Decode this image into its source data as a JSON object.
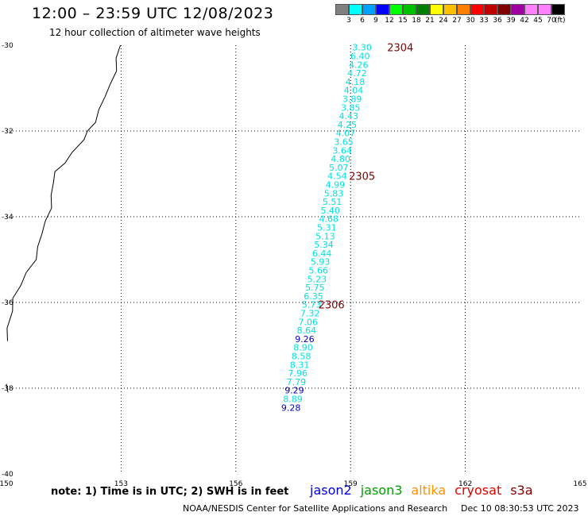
{
  "header": {
    "title": "12:00 – 23:59 UTC 12/08/2023",
    "subtitle": "12 hour collection of altimeter wave heights"
  },
  "colorbar": {
    "colors": [
      "#808080",
      "#00ffff",
      "#00a0ff",
      "#0000ff",
      "#00ff00",
      "#00c000",
      "#008000",
      "#ffff00",
      "#ffc000",
      "#ff8000",
      "#ff0000",
      "#c00000",
      "#800000",
      "#a000a0",
      "#ff80ff",
      "#ff80ff",
      "#000000"
    ],
    "labels": [
      "3",
      "6",
      "9",
      "12",
      "15",
      "18",
      "21",
      "24",
      "27",
      "30",
      "33",
      "36",
      "39",
      "42",
      "45",
      "70"
    ],
    "unit": "(ft)"
  },
  "map": {
    "lon_range": [
      150,
      165
    ],
    "lat_range": [
      -40,
      -30
    ],
    "lon_ticks": [
      "150",
      "153",
      "156",
      "159",
      "162",
      "165"
    ],
    "lat_ticks": [
      "-30",
      "-32",
      "-34",
      "-36",
      "-38",
      "-40"
    ],
    "grid": true,
    "coast_color": "#000000",
    "point_color_cyan": "#00e0e0",
    "point_color_blue": "#0000c0",
    "pass_color": "#800000",
    "wave_points": [
      {
        "lon": 159.3,
        "lat": -30.05,
        "value": "3.30",
        "color": "cyan"
      },
      {
        "lon": 159.25,
        "lat": -30.25,
        "value": "6.40",
        "color": "cyan"
      },
      {
        "lon": 159.21,
        "lat": -30.45,
        "value": "4.26",
        "color": "cyan"
      },
      {
        "lon": 159.17,
        "lat": -30.65,
        "value": "4.72",
        "color": "cyan"
      },
      {
        "lon": 159.12,
        "lat": -30.85,
        "value": "4.18",
        "color": "cyan"
      },
      {
        "lon": 159.08,
        "lat": -31.05,
        "value": "4.04",
        "color": "cyan"
      },
      {
        "lon": 159.04,
        "lat": -31.25,
        "value": "3.89",
        "color": "cyan"
      },
      {
        "lon": 159.0,
        "lat": -31.45,
        "value": "3.85",
        "color": "cyan"
      },
      {
        "lon": 158.95,
        "lat": -31.65,
        "value": "4.43",
        "color": "cyan"
      },
      {
        "lon": 158.91,
        "lat": -31.85,
        "value": "4.25",
        "color": "cyan"
      },
      {
        "lon": 158.87,
        "lat": -32.05,
        "value": "4.07",
        "color": "cyan"
      },
      {
        "lon": 158.82,
        "lat": -32.25,
        "value": "3.65",
        "color": "cyan"
      },
      {
        "lon": 158.78,
        "lat": -32.45,
        "value": "3.64",
        "color": "cyan"
      },
      {
        "lon": 158.74,
        "lat": -32.65,
        "value": "4.80",
        "color": "cyan"
      },
      {
        "lon": 158.69,
        "lat": -32.85,
        "value": "5.07",
        "color": "cyan"
      },
      {
        "lon": 158.65,
        "lat": -33.05,
        "value": "4.54",
        "color": "cyan"
      },
      {
        "lon": 158.6,
        "lat": -33.25,
        "value": "4.99",
        "color": "cyan"
      },
      {
        "lon": 158.56,
        "lat": -33.45,
        "value": "5.83",
        "color": "cyan"
      },
      {
        "lon": 158.52,
        "lat": -33.65,
        "value": "5.51",
        "color": "cyan"
      },
      {
        "lon": 158.47,
        "lat": -33.85,
        "value": "5.40",
        "color": "cyan"
      },
      {
        "lon": 158.43,
        "lat": -34.05,
        "value": "4.68",
        "color": "cyan"
      },
      {
        "lon": 158.38,
        "lat": -34.25,
        "value": "5.31",
        "color": "cyan"
      },
      {
        "lon": 158.34,
        "lat": -34.45,
        "value": "5.13",
        "color": "cyan"
      },
      {
        "lon": 158.3,
        "lat": -34.65,
        "value": "5.34",
        "color": "cyan"
      },
      {
        "lon": 158.25,
        "lat": -34.85,
        "value": "6.44",
        "color": "cyan"
      },
      {
        "lon": 158.21,
        "lat": -35.05,
        "value": "5.93",
        "color": "cyan"
      },
      {
        "lon": 158.16,
        "lat": -35.25,
        "value": "5.66",
        "color": "cyan"
      },
      {
        "lon": 158.12,
        "lat": -35.45,
        "value": "5.23",
        "color": "cyan"
      },
      {
        "lon": 158.07,
        "lat": -35.65,
        "value": "5.75",
        "color": "cyan"
      },
      {
        "lon": 158.03,
        "lat": -35.85,
        "value": "6.35",
        "color": "cyan"
      },
      {
        "lon": 157.98,
        "lat": -36.05,
        "value": "5.73",
        "color": "cyan"
      },
      {
        "lon": 157.94,
        "lat": -36.25,
        "value": "7.32",
        "color": "cyan"
      },
      {
        "lon": 157.89,
        "lat": -36.45,
        "value": "7.06",
        "color": "cyan"
      },
      {
        "lon": 157.85,
        "lat": -36.65,
        "value": "8.64",
        "color": "cyan"
      },
      {
        "lon": 157.8,
        "lat": -36.85,
        "value": "9.26",
        "color": "blue"
      },
      {
        "lon": 157.76,
        "lat": -37.05,
        "value": "8.90",
        "color": "cyan"
      },
      {
        "lon": 157.71,
        "lat": -37.25,
        "value": "8.58",
        "color": "cyan"
      },
      {
        "lon": 157.67,
        "lat": -37.45,
        "value": "8.31",
        "color": "cyan"
      },
      {
        "lon": 157.62,
        "lat": -37.65,
        "value": "7.96",
        "color": "cyan"
      },
      {
        "lon": 157.58,
        "lat": -37.85,
        "value": "7.79",
        "color": "cyan"
      },
      {
        "lon": 157.53,
        "lat": -38.05,
        "value": "9.29",
        "color": "blue"
      },
      {
        "lon": 157.49,
        "lat": -38.25,
        "value": "8.89",
        "color": "cyan"
      },
      {
        "lon": 157.44,
        "lat": -38.45,
        "value": "9.28",
        "color": "blue"
      }
    ],
    "pass_labels": [
      {
        "lon": 160.3,
        "lat": -30.05,
        "value": "2304"
      },
      {
        "lon": 159.3,
        "lat": -33.05,
        "value": "2305"
      },
      {
        "lon": 158.5,
        "lat": -36.05,
        "value": "2306"
      }
    ]
  },
  "note": "note:  1) Time is in UTC;  2) SWH is in feet",
  "satellites": [
    {
      "name": "jason2",
      "color": "#0000e0"
    },
    {
      "name": "jason3",
      "color": "#00a000"
    },
    {
      "name": "altika",
      "color": "#ff9000"
    },
    {
      "name": "cryosat",
      "color": "#e00000"
    },
    {
      "name": "s3a",
      "color": "#800000"
    }
  ],
  "footer": {
    "credit": "NOAA/NESDIS Center for Satellite Applications and Research",
    "timestamp": "Dec 10 08:30:53 UTC 2023"
  }
}
